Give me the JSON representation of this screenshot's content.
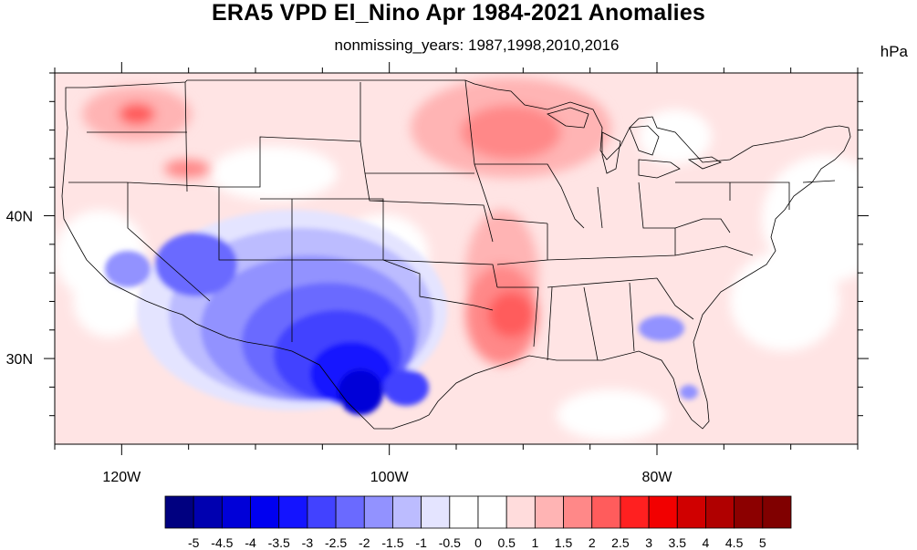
{
  "title": "ERA5 VPD El_Nino Apr 1984-2021 Anomalies",
  "subtitle": "nonmissing_years: 1987,1998,2010,2016",
  "units": "hPa",
  "map": {
    "lon_range": [
      -125,
      -65
    ],
    "lat_range": [
      24,
      50
    ],
    "x_ticks": [
      {
        "value": -120,
        "label": "120W"
      },
      {
        "value": -100,
        "label": "100W"
      },
      {
        "value": -80,
        "label": "80W"
      }
    ],
    "y_ticks": [
      {
        "value": 30,
        "label": "30N"
      },
      {
        "value": 40,
        "label": "40N"
      }
    ],
    "minor_x_ticks": [
      -125,
      -115,
      -110,
      -105,
      -95,
      -90,
      -85,
      -75,
      -70,
      -65
    ],
    "minor_y_ticks": [
      26,
      28,
      32,
      34,
      36,
      38,
      42,
      44,
      46,
      48,
      50
    ]
  },
  "colorbar": {
    "labels": [
      "-5",
      "-4.5",
      "-4",
      "-3.5",
      "-3",
      "-2.5",
      "-2",
      "-1.5",
      "-1",
      "-0.5",
      "0",
      "0.5",
      "1",
      "1.5",
      "2",
      "2.5",
      "3",
      "3.5",
      "4",
      "4.5",
      "5"
    ],
    "colors": [
      "#000080",
      "#0000b0",
      "#0000d8",
      "#0000f0",
      "#1414ff",
      "#4242ff",
      "#6a6aff",
      "#9292ff",
      "#bcbcff",
      "#e4e4ff",
      "#ffffff",
      "#ffffff",
      "#ffdcdc",
      "#ffb4b4",
      "#ff8888",
      "#ff5c5c",
      "#ff2020",
      "#f20000",
      "#d00000",
      "#b00000",
      "#8c0000",
      "#800000"
    ]
  }
}
